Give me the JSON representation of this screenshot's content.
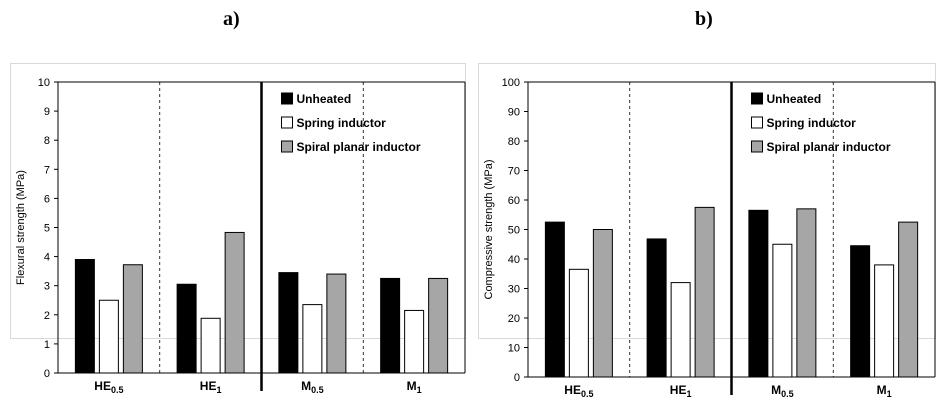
{
  "panels": {
    "a_label": "a)",
    "b_label": "b)"
  },
  "chart_data": [
    {
      "type": "bar",
      "title": "",
      "xlabel": "",
      "ylabel": "Flexural strength (MPa)",
      "ylim": [
        0,
        10
      ],
      "yticks": [
        0,
        1,
        2,
        3,
        4,
        5,
        6,
        7,
        8,
        9,
        10
      ],
      "categories": [
        {
          "base": "HE",
          "sub": "0.5"
        },
        {
          "base": "HE",
          "sub": "1"
        },
        {
          "base": "M",
          "sub": "0.5"
        },
        {
          "base": "M",
          "sub": "1"
        }
      ],
      "series": [
        {
          "name": "Unheated",
          "color": "#000000",
          "values": [
            3.9,
            3.05,
            3.45,
            3.25
          ]
        },
        {
          "name": "Spring inductor",
          "color": "#ffffff",
          "values": [
            2.5,
            1.88,
            2.35,
            2.15
          ]
        },
        {
          "name": "Spiral planar inductor",
          "color": "#a6a6a6",
          "values": [
            3.72,
            4.83,
            3.4,
            3.25
          ]
        }
      ],
      "grid": false,
      "legend_position": "top-right"
    },
    {
      "type": "bar",
      "title": "",
      "xlabel": "",
      "ylabel": "Compressive strength (MPa)",
      "ylim": [
        0,
        100
      ],
      "yticks": [
        0,
        10,
        20,
        30,
        40,
        50,
        60,
        70,
        80,
        90,
        100
      ],
      "categories": [
        {
          "base": "HE",
          "sub": "0.5"
        },
        {
          "base": "HE",
          "sub": "1"
        },
        {
          "base": "M",
          "sub": "0.5"
        },
        {
          "base": "M",
          "sub": "1"
        }
      ],
      "series": [
        {
          "name": "Unheated",
          "color": "#000000",
          "values": [
            52.5,
            46.8,
            56.5,
            44.5
          ]
        },
        {
          "name": "Spring inductor",
          "color": "#ffffff",
          "values": [
            36.5,
            32.0,
            45.0,
            38.0
          ]
        },
        {
          "name": "Spiral planar inductor",
          "color": "#a6a6a6",
          "values": [
            50.0,
            57.5,
            57.0,
            52.5
          ]
        }
      ],
      "grid": false,
      "legend_position": "top-right"
    }
  ]
}
